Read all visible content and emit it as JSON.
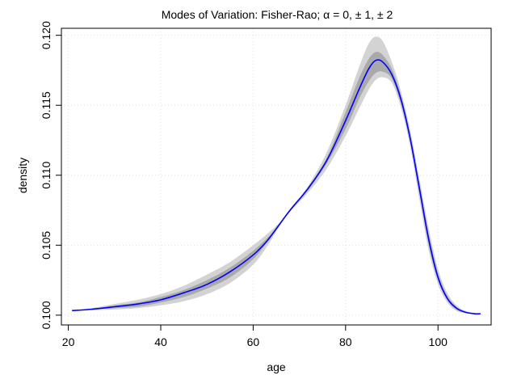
{
  "chart_data": {
    "type": "area",
    "title": "Modes of Variation: Fisher-Rao; α = 0, ± 1, ± 2",
    "xlabel": "age",
    "ylabel": "density",
    "xlim": [
      18.5,
      111.5
    ],
    "ylim": [
      0.0993,
      0.1205
    ],
    "x_ticks": [
      20,
      40,
      60,
      80,
      100
    ],
    "x_tick_labels": [
      "20",
      "40",
      "60",
      "80",
      "100"
    ],
    "y_ticks": [
      0.1,
      0.105,
      0.11,
      0.115,
      0.12
    ],
    "y_tick_labels": [
      "0.100",
      "0.105",
      "0.110",
      "0.115",
      "0.120"
    ],
    "grid": true,
    "x": [
      20.8,
      25,
      30,
      35,
      40,
      45,
      50,
      55,
      60,
      63,
      65.5,
      68,
      72,
      76,
      80,
      83,
      85,
      86.5,
      88,
      90,
      92,
      94,
      96,
      98,
      100,
      102,
      104,
      106,
      108,
      109.2
    ],
    "series": [
      {
        "role": "band_outer",
        "color": "#d3d3d3",
        "upper": [
          0.10035,
          0.1005,
          0.1008,
          0.1011,
          0.1015,
          0.1021,
          0.1029,
          0.1038,
          0.105,
          0.1058,
          0.10655,
          0.1075,
          0.1093,
          0.1117,
          0.115,
          0.1178,
          0.1194,
          0.1199,
          0.1196,
          0.1181,
          0.116,
          0.1132,
          0.1097,
          0.1062,
          0.1033,
          0.1016,
          0.1007,
          0.1003,
          0.10015,
          0.1001
        ],
        "lower": [
          0.10032,
          0.10036,
          0.1004,
          0.1005,
          0.1007,
          0.101,
          0.1015,
          0.1023,
          0.1036,
          0.1049,
          0.10625,
          0.1074,
          0.1088,
          0.1105,
          0.1128,
          0.1148,
          0.1161,
          0.1168,
          0.117,
          0.1166,
          0.1148,
          0.112,
          0.1082,
          0.1046,
          0.1022,
          0.1009,
          0.1003,
          0.10015,
          0.10005,
          0.1001
        ]
      },
      {
        "role": "band_inner",
        "color": "#a9a9a9",
        "upper": [
          0.10034,
          0.10045,
          0.1007,
          0.1009,
          0.1013,
          0.1018,
          0.1025,
          0.1034,
          0.1046,
          0.1055,
          0.10645,
          0.1076,
          0.1092,
          0.1113,
          0.1145,
          0.117,
          0.1183,
          0.1188,
          0.1186,
          0.1176,
          0.1157,
          0.1129,
          0.1094,
          0.1058,
          0.103,
          0.1014,
          0.1006,
          0.1002,
          0.1001,
          0.1001
        ],
        "lower": [
          0.10033,
          0.10039,
          0.1005,
          0.1006,
          0.1009,
          0.1013,
          0.1019,
          0.1027,
          0.104,
          0.1052,
          0.10635,
          0.1075,
          0.109,
          0.1109,
          0.1133,
          0.1155,
          0.1167,
          0.1173,
          0.1174,
          0.1169,
          0.1151,
          0.1123,
          0.1087,
          0.105,
          0.1025,
          0.1011,
          0.1004,
          0.1002,
          0.1001,
          0.1001
        ]
      },
      {
        "role": "mean",
        "color": "#0000ff",
        "values": [
          0.10033,
          0.10042,
          0.1006,
          0.1008,
          0.1011,
          0.1016,
          0.1022,
          0.1031,
          0.1043,
          0.1053,
          0.1064,
          0.1075,
          0.1091,
          0.1111,
          0.1139,
          0.1162,
          0.1176,
          0.1182,
          0.1181,
          0.1172,
          0.1154,
          0.1126,
          0.109,
          0.1054,
          0.1027,
          0.1012,
          0.1005,
          0.1002,
          0.1001,
          0.1001
        ]
      }
    ]
  }
}
